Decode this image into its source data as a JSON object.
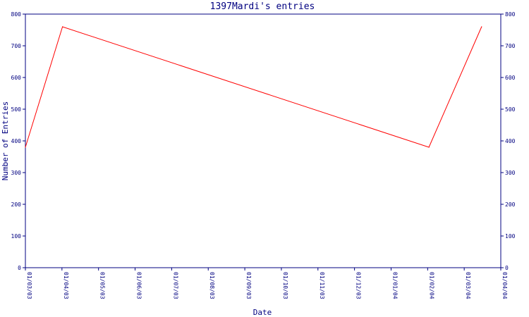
{
  "colors": {
    "axis": "#000080",
    "line": "#ff0000",
    "text": "#000080",
    "background": "#ffffff"
  },
  "chart_data": {
    "type": "line",
    "title": "1397Mardi's entries",
    "xlabel": "Date",
    "ylabel": "Number of Entries",
    "ylim": [
      0,
      800
    ],
    "y_ticks": [
      0,
      100,
      200,
      300,
      400,
      500,
      600,
      700,
      800
    ],
    "x_tick_labels": [
      "01/03/03",
      "01/04/03",
      "01/05/03",
      "01/06/03",
      "01/07/03",
      "01/08/03",
      "01/09/03",
      "01/10/03",
      "01/11/03",
      "01/12/03",
      "01/01/04",
      "01/02/04",
      "01/03/04",
      "01/04/04"
    ],
    "x_range": [
      "2003-03-01",
      "2004-04-01"
    ],
    "grid": false,
    "right_axis": true,
    "series": [
      {
        "x": [
          "2003-03-01",
          "2003-04-01",
          "2004-02-01",
          "2004-03-16"
        ],
        "values": [
          380,
          760,
          380,
          760
        ]
      }
    ]
  }
}
